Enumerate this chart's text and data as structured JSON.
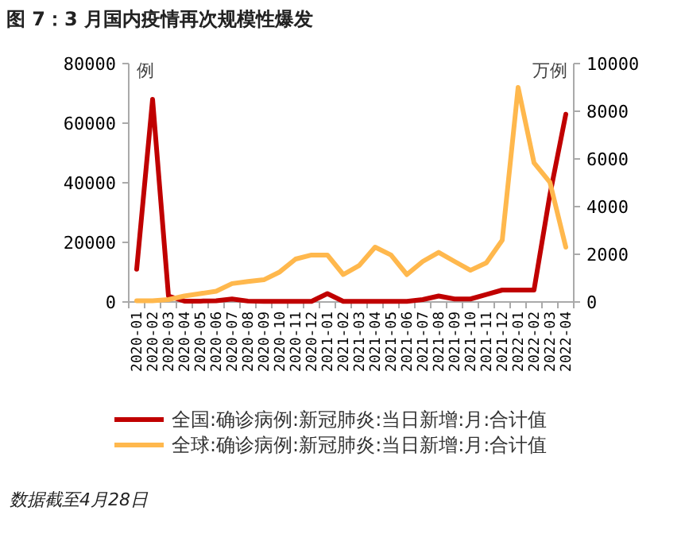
{
  "chart_data": {
    "type": "line",
    "title": "图 7：3 月国内疫情再次规模性爆发",
    "ylabel": "例",
    "y2label": "万例",
    "categories": [
      "2020-01",
      "2020-02",
      "2020-03",
      "2020-04",
      "2020-05",
      "2020-06",
      "2020-07",
      "2020-08",
      "2020-09",
      "2020-10",
      "2020-11",
      "2020-12",
      "2021-01",
      "2021-02",
      "2021-03",
      "2021-04",
      "2021-05",
      "2021-06",
      "2021-07",
      "2021-08",
      "2021-09",
      "2021-10",
      "2021-11",
      "2021-12",
      "2022-01",
      "2022-02",
      "2022-03",
      "2022-04"
    ],
    "series": [
      {
        "name": "全国:确诊病例:新冠肺炎:当日新增:月:合计值",
        "color": "#c00000",
        "values": [
          11000,
          68000,
          2000,
          300,
          300,
          400,
          1000,
          300,
          200,
          200,
          200,
          200,
          2800,
          200,
          200,
          200,
          200,
          200,
          800,
          2000,
          1000,
          1000,
          2500,
          4000,
          4000,
          4000,
          36000,
          63000
        ]
      },
      {
        "name": "全球:确诊病例:新冠肺炎:当日新增:月:合计值",
        "color": "#ffb84d",
        "axis": "y2",
        "values": [
          50,
          50,
          100,
          250,
          350,
          450,
          770,
          860,
          930,
          1260,
          1800,
          1970,
          1970,
          1150,
          1530,
          2300,
          1970,
          1150,
          1700,
          2080,
          1700,
          1330,
          1640,
          2590,
          9000,
          5840,
          5020,
          2300
        ]
      }
    ],
    "ylim": [
      0,
      80000
    ],
    "yticks": [
      0,
      20000,
      40000,
      60000,
      80000
    ],
    "y2lim": [
      0,
      10000
    ],
    "y2ticks": [
      0,
      2000,
      4000,
      6000,
      8000,
      10000
    ],
    "legend": "bottom",
    "grid": false,
    "annotations": [
      "数据截至4月28日"
    ]
  }
}
